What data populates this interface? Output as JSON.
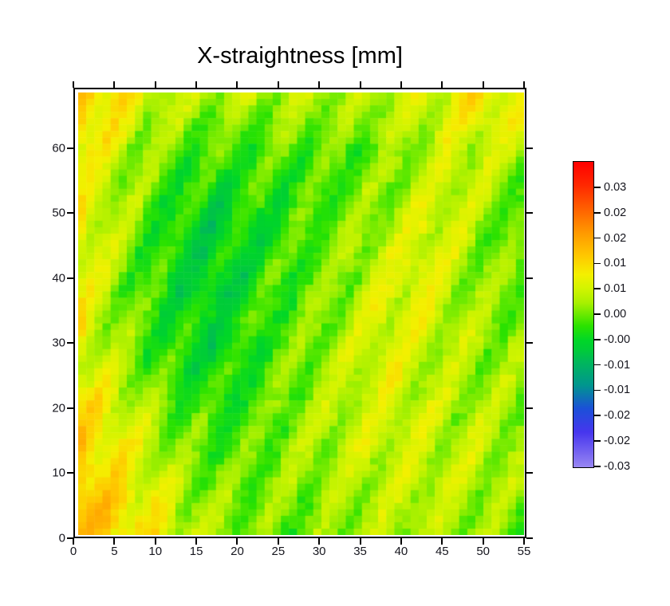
{
  "chart_data": {
    "type": "heatmap",
    "title": "X-straightness [mm]",
    "xlabel": "",
    "ylabel": "",
    "value_unit": "mm",
    "xlim": [
      0,
      55.4
    ],
    "ylim": [
      0,
      69.3
    ],
    "x_ticks": [
      0,
      5,
      10,
      15,
      20,
      25,
      30,
      35,
      40,
      45,
      50,
      55
    ],
    "y_ticks": [
      0,
      10,
      20,
      30,
      40,
      50,
      60
    ],
    "grid": {
      "cols": 55,
      "rows": 69
    },
    "legend_position": "right",
    "grid_lines": false,
    "colorbar": {
      "labels": [
        "0.03",
        "0.02",
        "0.02",
        "0.01",
        "0.01",
        "0.00",
        "-0.00",
        "-0.01",
        "-0.01",
        "-0.02",
        "-0.02",
        "-0.03"
      ],
      "range": [
        -0.03,
        0.035
      ],
      "gradient_stops": [
        [
          -30,
          "#9886f2"
        ],
        [
          -22.5,
          "#4636ee"
        ],
        [
          -17.5,
          "#1b50d8"
        ],
        [
          -12.5,
          "#00968e"
        ],
        [
          -7.5,
          "#00b85a"
        ],
        [
          -5,
          "#00cc38"
        ],
        [
          -3,
          "#00d628"
        ],
        [
          0,
          "#2ae200"
        ],
        [
          2,
          "#5ce800"
        ],
        [
          5,
          "#a8f000"
        ],
        [
          8,
          "#d2f400"
        ],
        [
          11,
          "#f4f000"
        ],
        [
          15,
          "#ffc800"
        ],
        [
          20,
          "#ff9800"
        ],
        [
          25,
          "#ff6000"
        ],
        [
          30,
          "#ff2800"
        ],
        [
          35,
          "#ff0000"
        ]
      ]
    },
    "field_coarse": {
      "comment_units": "estimated straightness values in 0.001 mm, 17 rows (top=y_max) x 14 cols (left=x0)",
      "cols": 14,
      "rows": 17,
      "values": [
        [
          14,
          12,
          8,
          6,
          7,
          6,
          6,
          6,
          5,
          7,
          8,
          10,
          12,
          10
        ],
        [
          15,
          10,
          6,
          4,
          3,
          2,
          4,
          5,
          4,
          6,
          7,
          9,
          10,
          8
        ],
        [
          12,
          8,
          4,
          2,
          1,
          1,
          2,
          2,
          1,
          3,
          5,
          7,
          8,
          5
        ],
        [
          10,
          7,
          3,
          0,
          -1,
          0,
          1,
          0,
          2,
          4,
          6,
          8,
          6,
          3
        ],
        [
          10,
          6,
          2,
          -2,
          -3,
          -1,
          0,
          1,
          3,
          5,
          8,
          9,
          4,
          2
        ],
        [
          11,
          6,
          1,
          -3,
          -4,
          -2,
          0,
          2,
          4,
          6,
          9,
          8,
          3,
          1
        ],
        [
          11,
          5,
          1,
          -3,
          -4,
          -2,
          0,
          2,
          5,
          7,
          10,
          7,
          3,
          2
        ],
        [
          10,
          5,
          0,
          -3,
          -4,
          -2,
          1,
          3,
          5,
          8,
          10,
          6,
          4,
          3
        ],
        [
          10,
          4,
          0,
          -2,
          -3,
          -1,
          1,
          3,
          6,
          9,
          9,
          6,
          4,
          3
        ],
        [
          9,
          5,
          1,
          -2,
          -3,
          -1,
          2,
          4,
          6,
          9,
          8,
          6,
          5,
          4
        ],
        [
          10,
          6,
          2,
          -1,
          -2,
          0,
          2,
          4,
          7,
          9,
          7,
          6,
          5,
          4
        ],
        [
          12,
          8,
          4,
          0,
          -1,
          0,
          3,
          5,
          7,
          8,
          7,
          6,
          5,
          5
        ],
        [
          13,
          10,
          6,
          2,
          0,
          1,
          3,
          5,
          7,
          8,
          7,
          6,
          6,
          5
        ],
        [
          14,
          11,
          7,
          3,
          1,
          2,
          4,
          5,
          7,
          8,
          7,
          7,
          6,
          5
        ],
        [
          15,
          12,
          8,
          5,
          3,
          3,
          4,
          5,
          6,
          7,
          7,
          7,
          6,
          4
        ],
        [
          17,
          14,
          10,
          6,
          4,
          3,
          3,
          4,
          5,
          6,
          7,
          6,
          5,
          3
        ],
        [
          16,
          14,
          11,
          8,
          5,
          3,
          2,
          3,
          5,
          6,
          6,
          5,
          4,
          2
        ]
      ]
    },
    "stripes": {
      "period_cols": 7,
      "slope_cols_per_row": 0.38,
      "amplitude": 3.2,
      "phase": 0.5
    },
    "noise": {
      "amplitude": 2.2,
      "seed": 7
    }
  }
}
